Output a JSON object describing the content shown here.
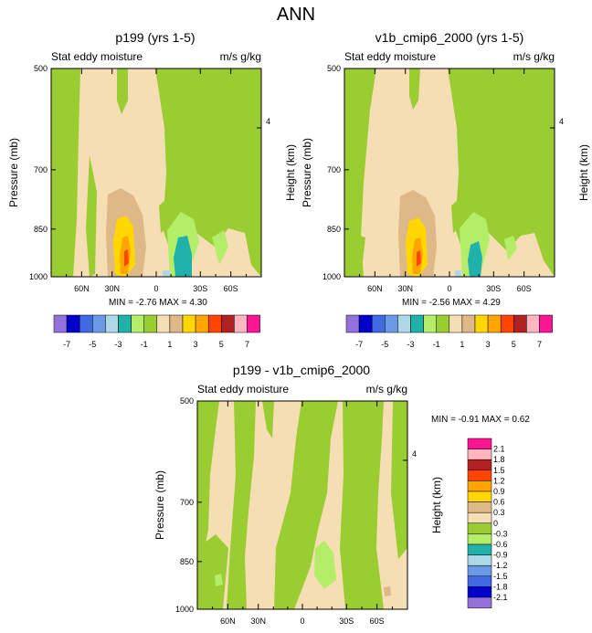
{
  "page": {
    "title": "ANN"
  },
  "common": {
    "subtitle_left": "Stat eddy moisture",
    "subtitle_right": "m/s g/kg",
    "ylabel_left": "Pressure (mb)",
    "ylabel_right": "Height (km)",
    "min_label": "MIN =",
    "max_label": "MAX =",
    "y_ticks": [
      "500",
      "700",
      "850",
      "1000"
    ],
    "x_ticks": [
      "60N",
      "30N",
      "0",
      "30S",
      "60S"
    ],
    "height_tick": "4"
  },
  "colors": {
    "purple": "#9370db",
    "darkblue": "#0000cd",
    "royal": "#4169e1",
    "cornflower": "#6a9ae6",
    "lightblue": "#add8e6",
    "teal": "#20b2aa",
    "lightgreen": "#b4ee68",
    "green": "#9acd32",
    "wheat": "#f5deb3",
    "tan": "#deb887",
    "gold": "#ffd700",
    "orange": "#ffa500",
    "orangered": "#ff4500",
    "firebrick": "#b22222",
    "pink": "#ffb6c1",
    "deeppink": "#ff1493"
  },
  "chart_data": [
    {
      "type": "contour",
      "title": "p199 (yrs 1-5)",
      "min": "-2.76",
      "max": "4.30",
      "xlabel": "",
      "ylabel": "Pressure (mb)",
      "ylim": [
        1000,
        500
      ]
    },
    {
      "type": "contour",
      "title": "v1b_cmip6_2000 (yrs 1-5)",
      "min": "-2.56",
      "max": "4.29",
      "xlabel": "",
      "ylabel": "Pressure (mb)",
      "ylim": [
        1000,
        500
      ]
    },
    {
      "type": "contour",
      "title": "p199 - v1b_cmip6_2000",
      "min": "-0.91",
      "max": "0.62",
      "xlabel": "",
      "ylabel": "Pressure (mb)",
      "ylim": [
        1000,
        500
      ]
    }
  ],
  "colorbar_horizontal": {
    "labels": [
      "-7",
      "-5",
      "-3",
      "-1",
      "1",
      "3",
      "5",
      "7"
    ],
    "colors": [
      "#9370db",
      "#0000cd",
      "#4169e1",
      "#6a9ae6",
      "#add8e6",
      "#20b2aa",
      "#b4ee68",
      "#9acd32",
      "#f5deb3",
      "#deb887",
      "#ffd700",
      "#ffa500",
      "#ff4500",
      "#b22222",
      "#ffb6c1",
      "#ff1493"
    ]
  },
  "colorbar_vertical": {
    "labels": [
      "2.1",
      "1.8",
      "1.5",
      "1.2",
      "0.9",
      "0.6",
      "0.3",
      "0",
      "-0.3",
      "-0.6",
      "-0.9",
      "-1.2",
      "-1.5",
      "-1.8",
      "-2.1"
    ],
    "colors": [
      "#ff1493",
      "#ffb6c1",
      "#b22222",
      "#ff4500",
      "#ffa500",
      "#ffd700",
      "#deb887",
      "#f5deb3",
      "#9acd32",
      "#b4ee68",
      "#20b2aa",
      "#add8e6",
      "#6a9ae6",
      "#4169e1",
      "#0000cd",
      "#9370db"
    ]
  }
}
